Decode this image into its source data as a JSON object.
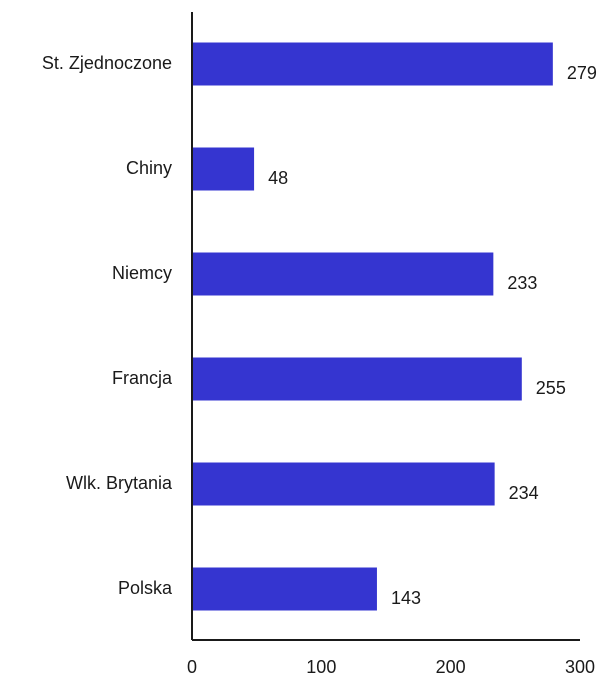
{
  "chart_data": {
    "type": "bar",
    "orientation": "horizontal",
    "categories": [
      "St. Zjednoczone",
      "Chiny",
      "Niemcy",
      "Francja",
      "Wlk. Brytania",
      "Polska"
    ],
    "values": [
      279,
      48,
      233,
      255,
      234,
      143
    ],
    "value_labels": [
      "279",
      "48",
      "233",
      "255",
      "234",
      "143"
    ],
    "xlim": [
      0,
      300
    ],
    "xticks": [
      0,
      100,
      200,
      300
    ],
    "xtick_labels": [
      "0",
      "100",
      "200",
      "300"
    ],
    "grid": false,
    "legend": "none",
    "bar_color": "#3535d0",
    "axis_color": "#1a1a1a"
  }
}
